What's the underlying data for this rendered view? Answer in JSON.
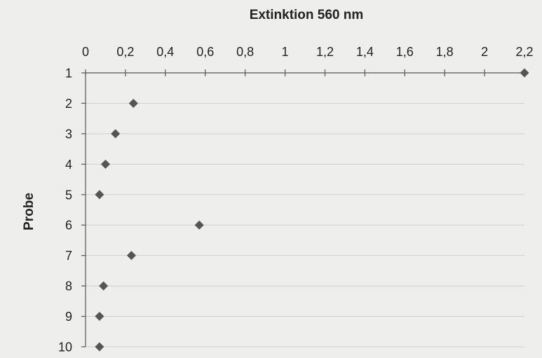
{
  "chart_data": {
    "type": "scatter",
    "title": "Extinktion 560 nm",
    "xlabel": "Extinktion 560 nm",
    "ylabel": "Probe",
    "xlim": [
      0,
      2.2
    ],
    "ylim": [
      1,
      10
    ],
    "x_axis_position": "top",
    "y_axis_inverted": true,
    "grid": "horizontal",
    "x_ticks": [
      0,
      0.2,
      0.4,
      0.6,
      0.8,
      1,
      1.2,
      1.4,
      1.6,
      1.8,
      2,
      2.2
    ],
    "x_tick_labels": [
      "0",
      "0,2",
      "0,4",
      "0,6",
      "0,8",
      "1",
      "1,2",
      "1,4",
      "1,6",
      "1,8",
      "2",
      "2,2"
    ],
    "y_ticks": [
      1,
      2,
      3,
      4,
      5,
      6,
      7,
      8,
      9,
      10
    ],
    "y_tick_labels": [
      "1",
      "2",
      "3",
      "4",
      "5",
      "6",
      "7",
      "8",
      "9",
      "10"
    ],
    "marker_color": "#555555",
    "points": [
      {
        "probe": 1,
        "extinktion": 2.2
      },
      {
        "probe": 2,
        "extinktion": 0.24
      },
      {
        "probe": 3,
        "extinktion": 0.15
      },
      {
        "probe": 4,
        "extinktion": 0.1
      },
      {
        "probe": 5,
        "extinktion": 0.07
      },
      {
        "probe": 6,
        "extinktion": 0.57
      },
      {
        "probe": 7,
        "extinktion": 0.23
      },
      {
        "probe": 8,
        "extinktion": 0.09
      },
      {
        "probe": 9,
        "extinktion": 0.07
      },
      {
        "probe": 10,
        "extinktion": 0.07
      }
    ]
  }
}
